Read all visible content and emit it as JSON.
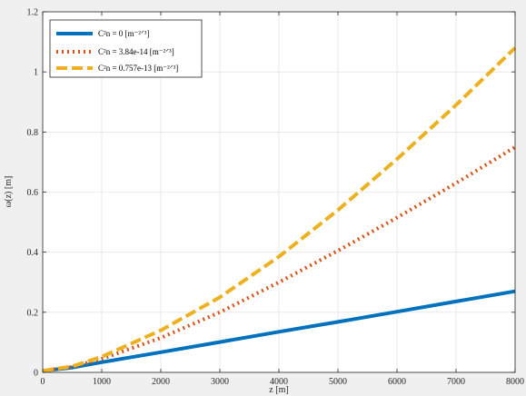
{
  "chart_data": {
    "type": "line",
    "xlabel": "z [m]",
    "ylabel": "ω(z) [m]",
    "xlim": [
      0,
      8000
    ],
    "ylim": [
      0,
      1.2
    ],
    "xticks": [
      0,
      1000,
      2000,
      3000,
      4000,
      5000,
      6000,
      7000,
      8000
    ],
    "yticks": [
      0,
      0.2,
      0.4,
      0.6,
      0.8,
      1,
      1.2
    ],
    "xtick_labels": [
      "0",
      "1000",
      "2000",
      "3000",
      "4000",
      "5000",
      "6000",
      "7000",
      "8000"
    ],
    "ytick_labels": [
      "0",
      "0.2",
      "0.4",
      "0.6",
      "0.8",
      "1",
      "1.2"
    ],
    "grid": true,
    "legend_position": "top-left",
    "series": [
      {
        "name": "C²n = 0 [m⁻²ᐟ³]",
        "color": "#0072BD",
        "style": "solid",
        "x": [
          0,
          500,
          1000,
          2000,
          3000,
          4000,
          5000,
          6000,
          7000,
          8000
        ],
        "y": [
          0.005,
          0.016,
          0.034,
          0.067,
          0.101,
          0.135,
          0.168,
          0.202,
          0.236,
          0.27
        ]
      },
      {
        "name": "C²n = 3.84e-14 [m⁻²ᐟ³]",
        "color": "#D95319",
        "style": "dotted",
        "x": [
          0,
          500,
          1000,
          2000,
          3000,
          4000,
          5000,
          6000,
          7000,
          8000
        ],
        "y": [
          0.005,
          0.018,
          0.045,
          0.115,
          0.2,
          0.3,
          0.405,
          0.515,
          0.63,
          0.75
        ]
      },
      {
        "name": "C²n = 0.757e-13 [m⁻²ᐟ³]",
        "color": "#EDB120",
        "style": "dashed",
        "x": [
          0,
          500,
          1000,
          2000,
          3000,
          4000,
          5000,
          6000,
          7000,
          8000
        ],
        "y": [
          0.005,
          0.02,
          0.052,
          0.14,
          0.25,
          0.385,
          0.54,
          0.71,
          0.89,
          1.08
        ]
      }
    ]
  }
}
